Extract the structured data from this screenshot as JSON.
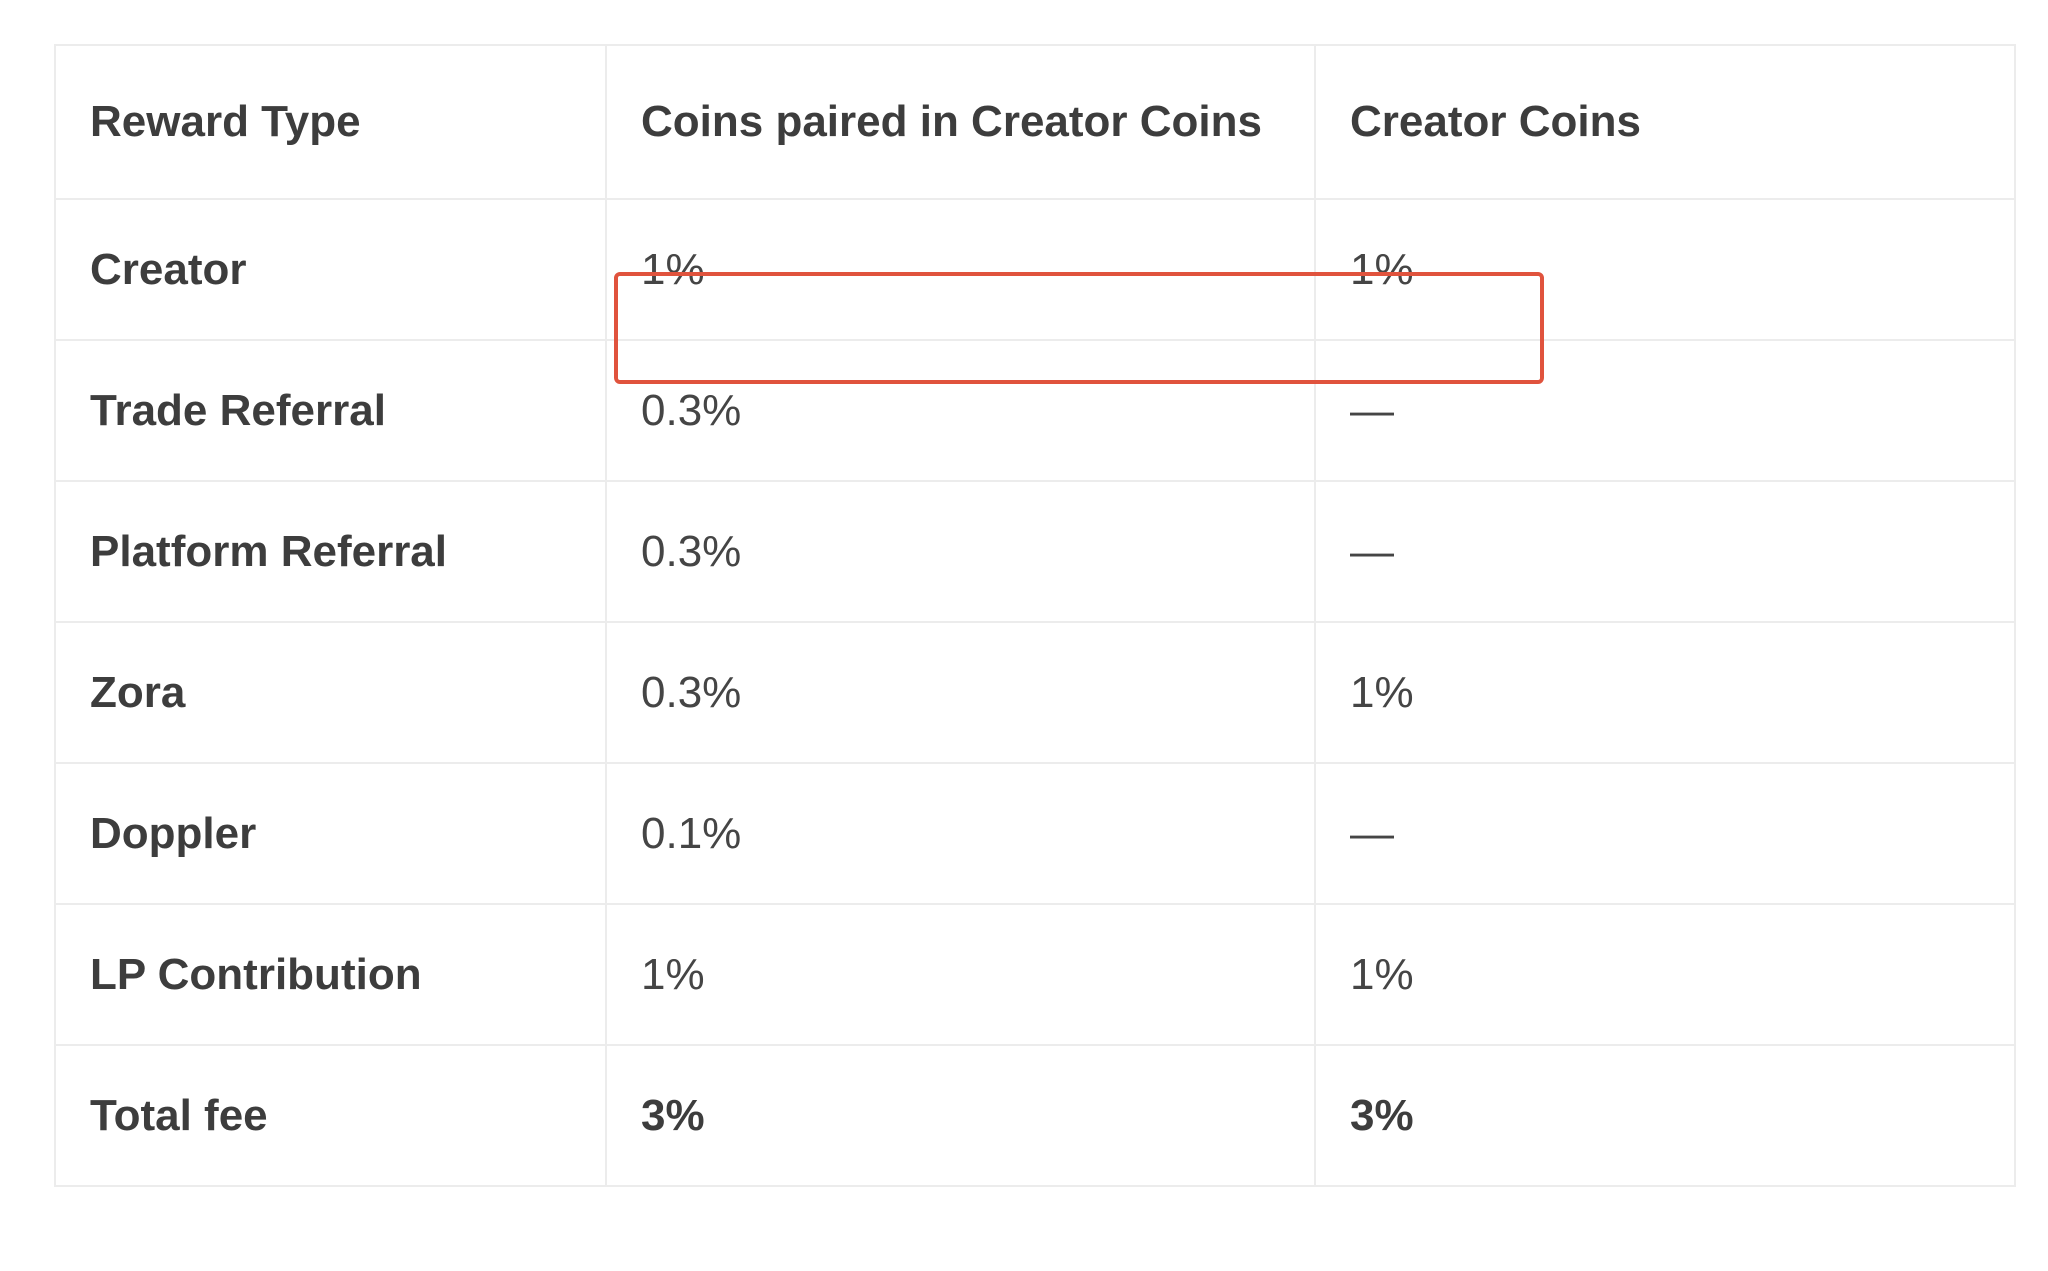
{
  "table": {
    "headers": [
      "Reward Type",
      "Coins paired in Creator Coins",
      "Creator Coins"
    ],
    "rows": [
      {
        "label": "Creator",
        "paired": "1%",
        "creator": "1%"
      },
      {
        "label": "Trade Referral",
        "paired": "0.3%",
        "creator": "—"
      },
      {
        "label": "Platform Referral",
        "paired": "0.3%",
        "creator": "—"
      },
      {
        "label": "Zora",
        "paired": "0.3%",
        "creator": "1%"
      },
      {
        "label": "Doppler",
        "paired": "0.1%",
        "creator": "—"
      },
      {
        "label": "LP Contribution",
        "paired": "1%",
        "creator": "1%"
      },
      {
        "label": "Total fee",
        "paired": "3%",
        "creator": "3%"
      }
    ]
  },
  "highlight": {
    "row": "Creator",
    "color": "#e0533d"
  },
  "colors": {
    "border": "#ececec",
    "text": "#3d3d3d"
  }
}
